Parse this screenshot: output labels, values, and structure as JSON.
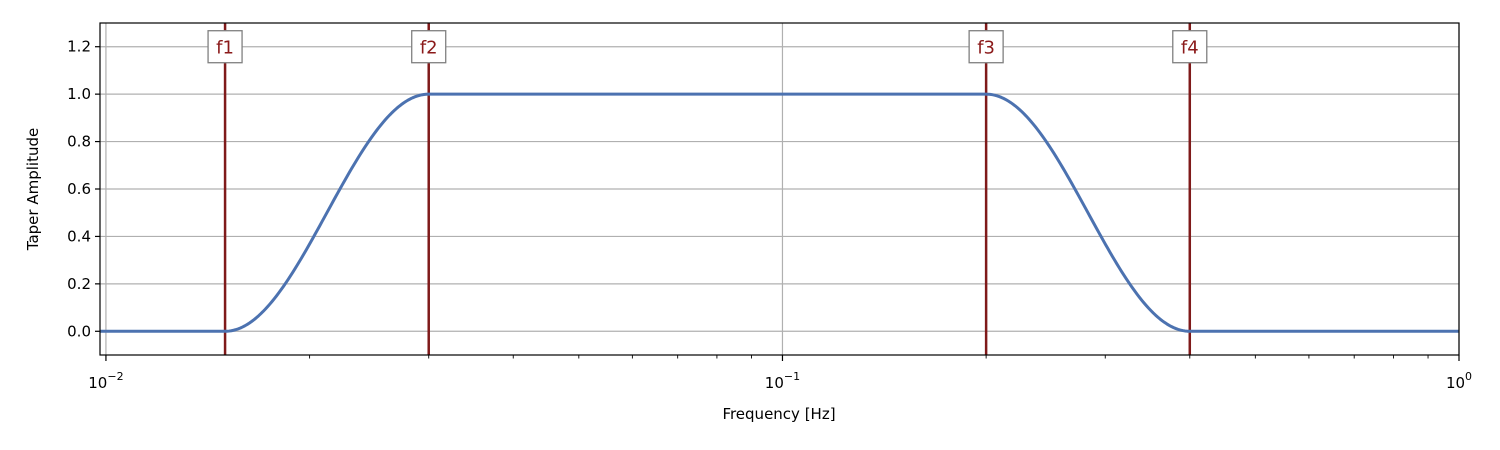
{
  "chart_data": {
    "type": "line",
    "title": "",
    "xlabel": "Frequency [Hz]",
    "ylabel": "Taper Amplitude",
    "xscale": "log",
    "xlim": [
      0.0098,
      1.0
    ],
    "ylim": [
      -0.1,
      1.3
    ],
    "grid": true,
    "x_ticks": [
      {
        "value": 0.01,
        "base": "10",
        "exp": "−2"
      },
      {
        "value": 0.1,
        "base": "10",
        "exp": "−1"
      },
      {
        "value": 1.0,
        "base": "10",
        "exp": "0"
      }
    ],
    "y_ticks": [
      {
        "value": 0.0,
        "label": "0.0"
      },
      {
        "value": 0.2,
        "label": "0.2"
      },
      {
        "value": 0.4,
        "label": "0.4"
      },
      {
        "value": 0.6,
        "label": "0.6"
      },
      {
        "value": 0.8,
        "label": "0.8"
      },
      {
        "value": 1.0,
        "label": "1.0"
      },
      {
        "value": 1.2,
        "label": "1.2"
      }
    ],
    "corner_frequencies": [
      {
        "label": "f1",
        "value": 0.015
      },
      {
        "label": "f2",
        "value": 0.03
      },
      {
        "label": "f3",
        "value": 0.2
      },
      {
        "label": "f4",
        "value": 0.4
      }
    ],
    "series": [
      {
        "name": "taper",
        "shape": "cosine taper: 0 below f1, rises to 1 between f1 and f2, 1 between f2 and f3, falls to 0 between f3 and f4, 0 above f4",
        "x": [
          0.0098,
          0.015,
          0.03,
          0.2,
          0.4,
          1.0
        ],
        "values": [
          0.0,
          0.0,
          1.0,
          1.0,
          0.0,
          0.0
        ]
      }
    ]
  },
  "colors": {
    "curve": "#4c72b0",
    "marker_line": "#7f1a1a",
    "marker_text": "#8b1a1a",
    "grid": "#b0b0b0",
    "axis": "#000000"
  }
}
